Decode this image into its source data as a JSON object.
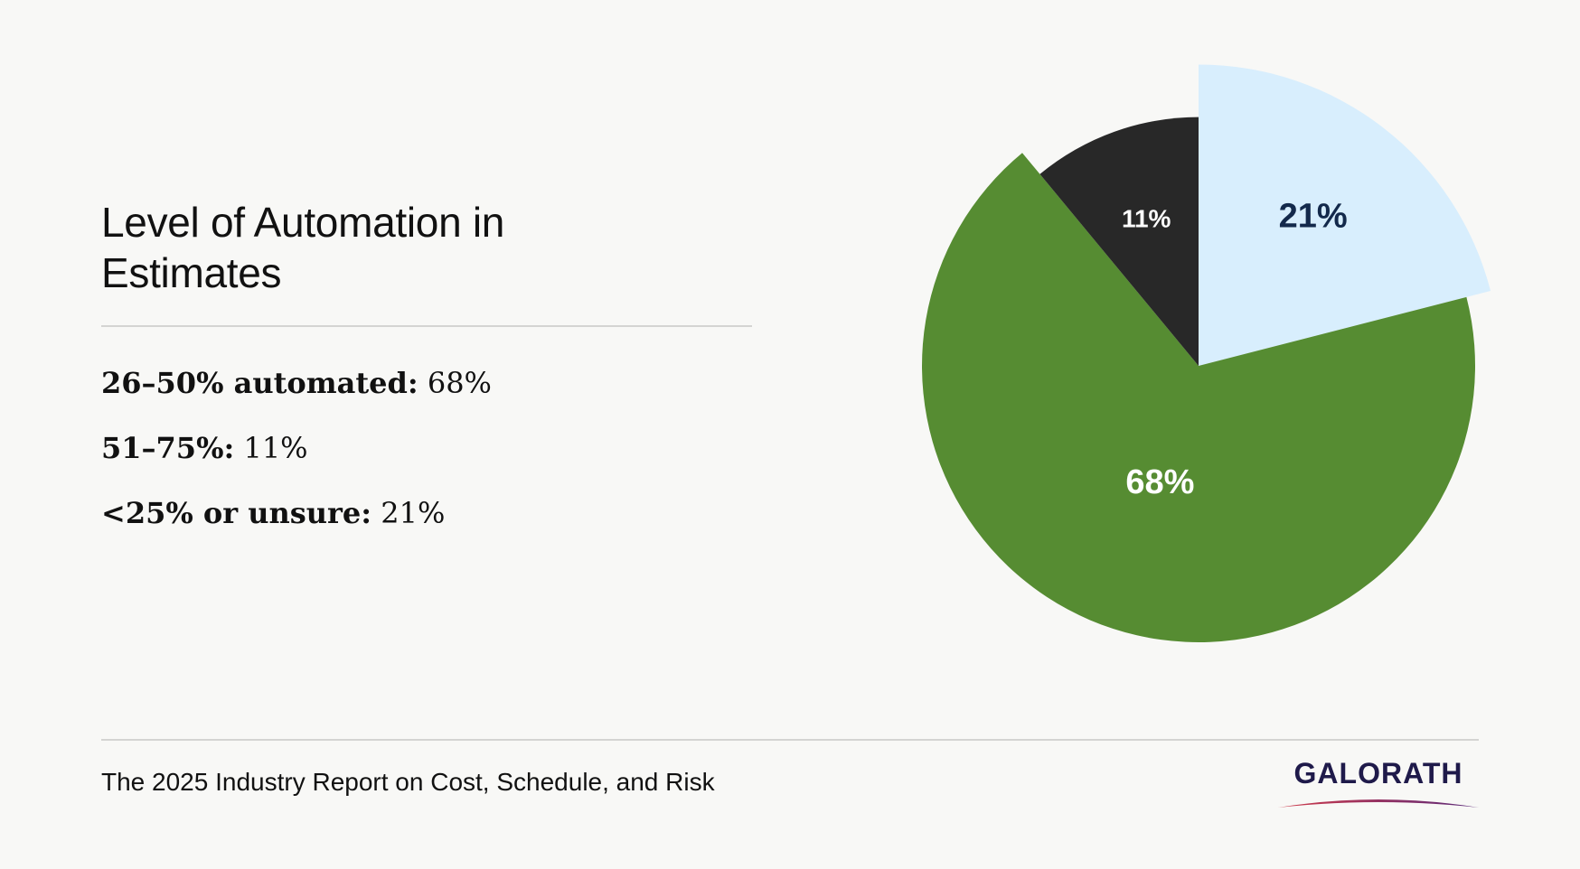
{
  "title": "Level of Automation in Estimates",
  "legend": [
    {
      "label": "26–50% automated:",
      "value": "68%"
    },
    {
      "label": "51–75%:",
      "value": "11%"
    },
    {
      "label": "<25% or unsure:",
      "value": "21%"
    }
  ],
  "chart_data": {
    "type": "pie",
    "start_angle_deg": 0,
    "direction": "clockwise",
    "slices": [
      {
        "label": "21%",
        "value": 21,
        "color": "#d8eefd",
        "label_color": "#13294b",
        "radius": 1.09
      },
      {
        "label": "68%",
        "value": 68,
        "color": "#568c32",
        "label_color": "#ffffff",
        "radius": 1.0
      },
      {
        "label": "11%",
        "value": 11,
        "color": "#282828",
        "label_color": "#ffffff",
        "radius": 0.9
      }
    ],
    "legend": "none",
    "grid": false
  },
  "footer": {
    "text": "The 2025 Industry Report on Cost, Schedule, and Risk"
  },
  "logo": {
    "text": "GALORATH",
    "colors": {
      "text": "#1f1a4a",
      "swoosh_start": "#d03a4a",
      "swoosh_end": "#5a2a7a"
    }
  }
}
